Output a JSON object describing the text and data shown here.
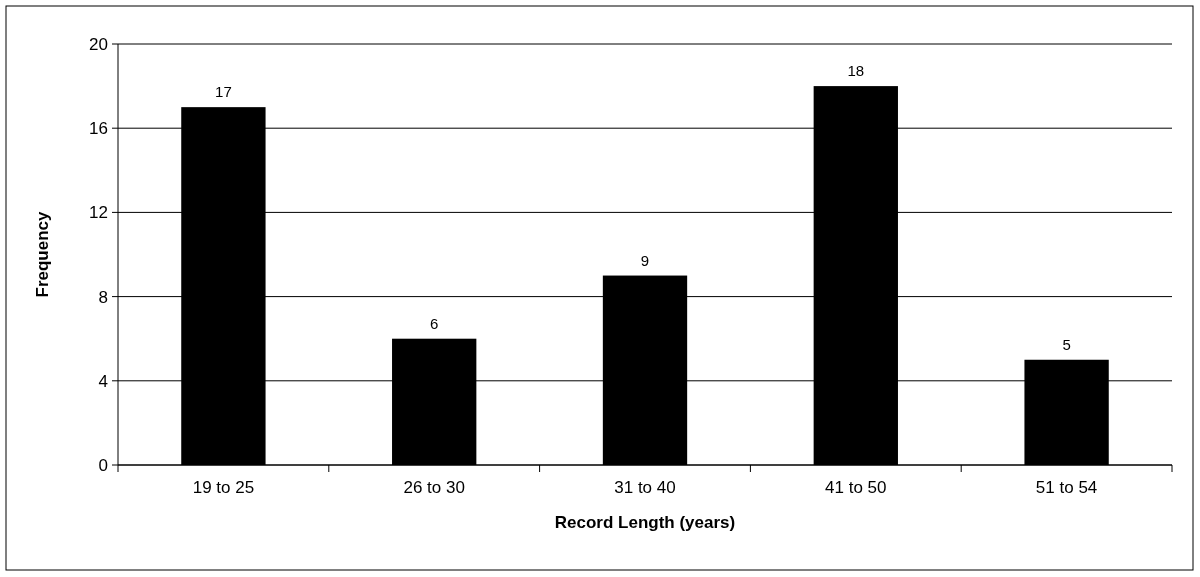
{
  "chart_data": {
    "type": "bar",
    "xlabel": "Record Length (years)",
    "ylabel": "Frequency",
    "categories": [
      "19 to 25",
      "26 to 30",
      "31 to 40",
      "41 to 50",
      "51 to 54"
    ],
    "values": [
      17,
      6,
      9,
      18,
      5
    ],
    "color": "#000000",
    "ylim": [
      0,
      20
    ],
    "yticks": [
      0,
      4,
      8,
      12,
      16,
      20
    ],
    "grid": "y",
    "data_labels": true
  }
}
